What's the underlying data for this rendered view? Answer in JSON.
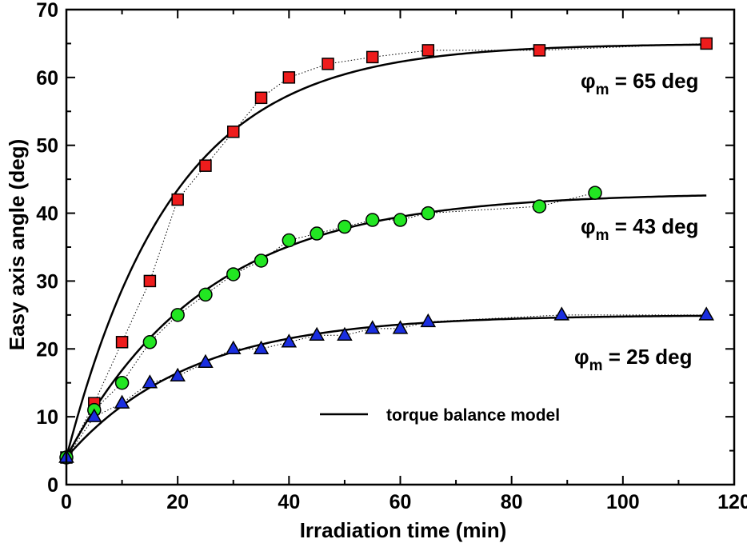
{
  "chart_data": {
    "type": "scatter",
    "title": "",
    "xlabel": "Irradiation time (min)",
    "ylabel": "Easy axis angle (deg)",
    "xlim": [
      0,
      120
    ],
    "ylim": [
      0,
      70
    ],
    "xticks": [
      0,
      20,
      40,
      60,
      80,
      100,
      120
    ],
    "yticks": [
      0,
      10,
      20,
      30,
      40,
      50,
      60,
      70
    ],
    "grid": false,
    "series": [
      {
        "name": "φm = 65 deg",
        "marker": "square",
        "color": "#ee1c1c",
        "x": [
          0,
          5,
          10,
          15,
          20,
          25,
          30,
          35,
          40,
          47,
          55,
          65,
          85,
          115
        ],
        "y": [
          4,
          12,
          21,
          30,
          42,
          47,
          52,
          57,
          60,
          62,
          63,
          64,
          64,
          65
        ],
        "model_saturation": 65,
        "model_rate": 0.052
      },
      {
        "name": "φm = 43 deg",
        "marker": "circle",
        "color": "#22e622",
        "x": [
          0,
          5,
          10,
          15,
          20,
          25,
          30,
          35,
          40,
          45,
          50,
          55,
          60,
          65,
          85,
          95
        ],
        "y": [
          4,
          11,
          15,
          21,
          25,
          28,
          31,
          33,
          36,
          37,
          38,
          39,
          39,
          40,
          41,
          43
        ],
        "model_saturation": 43,
        "model_rate": 0.04
      },
      {
        "name": "φm = 25 deg",
        "marker": "triangle",
        "color": "#1a2ee0",
        "x": [
          0,
          5,
          10,
          15,
          20,
          25,
          30,
          35,
          40,
          45,
          50,
          55,
          60,
          65,
          89,
          115
        ],
        "y": [
          4,
          10,
          12,
          15,
          16,
          18,
          20,
          20,
          21,
          22,
          22,
          23,
          23,
          24,
          25,
          25
        ],
        "model_saturation": 25,
        "model_rate": 0.045
      }
    ],
    "annotations": [
      {
        "symbol": "φ",
        "sub": "m",
        "rest": " = 65 deg"
      },
      {
        "symbol": "φ",
        "sub": "m",
        "rest": " = 43 deg"
      },
      {
        "symbol": "φ",
        "sub": "m",
        "rest": " = 25 deg"
      }
    ],
    "legend": {
      "label": "torque balance model",
      "placement": "lower-center"
    }
  }
}
